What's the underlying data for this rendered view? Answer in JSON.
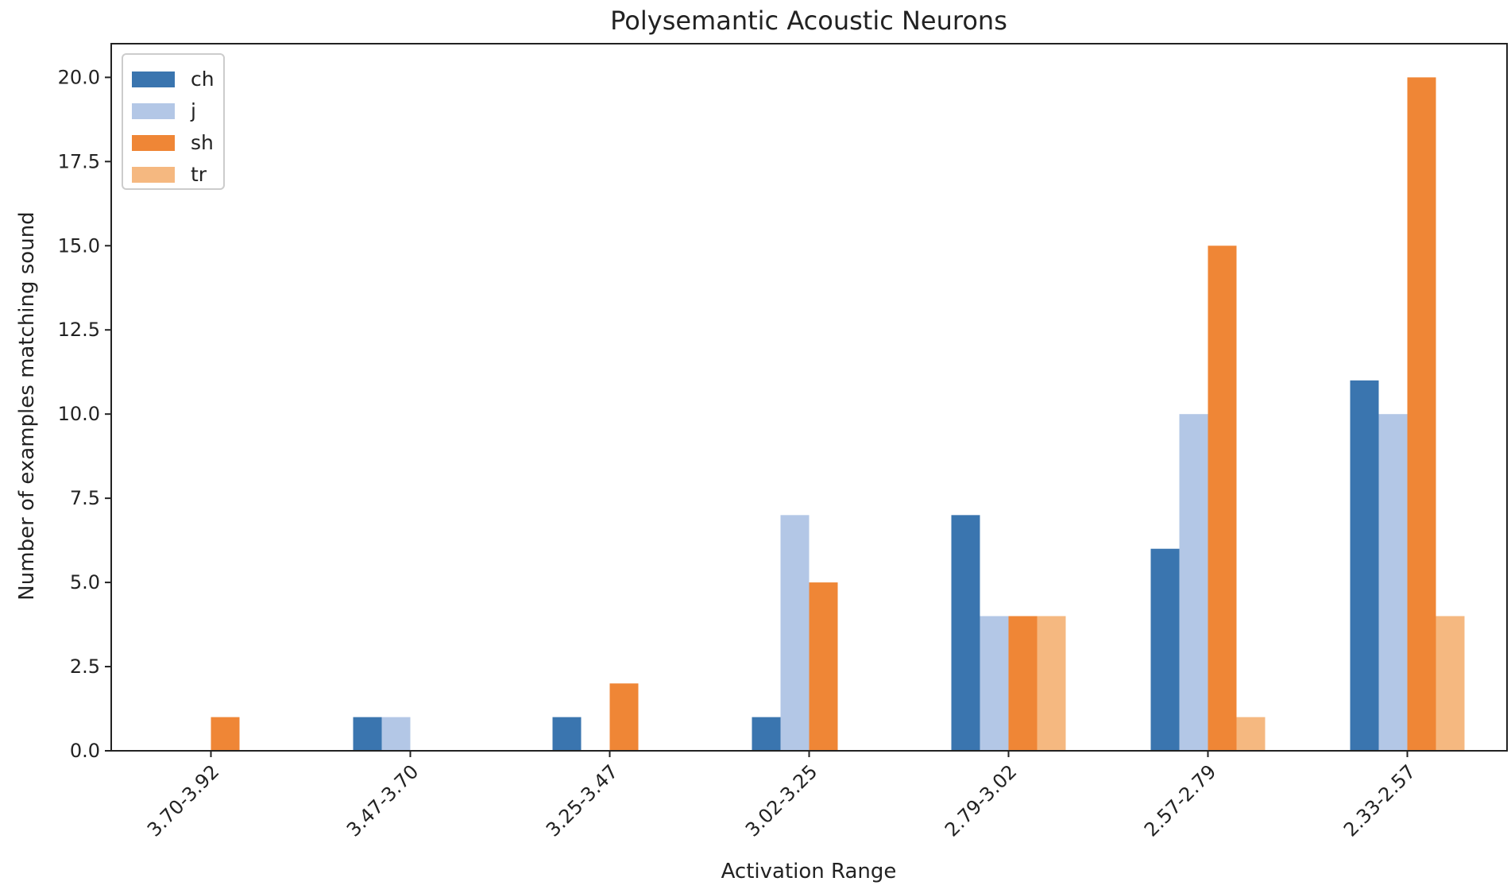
{
  "chart_data": {
    "type": "bar",
    "title": "Polysemantic Acoustic Neurons",
    "xlabel": "Activation Range",
    "ylabel": "Number of examples matching sound",
    "categories": [
      "3.70-3.92",
      "3.47-3.70",
      "3.25-3.47",
      "3.02-3.25",
      "2.79-3.02",
      "2.57-2.79",
      "2.33-2.57"
    ],
    "series": [
      {
        "name": "ch",
        "color": "#3a75af",
        "values": [
          0,
          1,
          1,
          1,
          7,
          6,
          11
        ]
      },
      {
        "name": "j",
        "color": "#b3c7e6",
        "values": [
          0,
          1,
          0,
          7,
          4,
          10,
          10
        ]
      },
      {
        "name": "sh",
        "color": "#ef8636",
        "values": [
          1,
          0,
          2,
          5,
          4,
          15,
          20
        ]
      },
      {
        "name": "tr",
        "color": "#f5b880",
        "values": [
          0,
          0,
          0,
          0,
          4,
          1,
          4
        ]
      }
    ],
    "ylim": [
      0,
      21
    ],
    "yticks": [
      "0.0",
      "2.5",
      "5.0",
      "7.5",
      "10.0",
      "12.5",
      "15.0",
      "17.5",
      "20.0"
    ],
    "grid": false,
    "legend_position": "top-left"
  }
}
